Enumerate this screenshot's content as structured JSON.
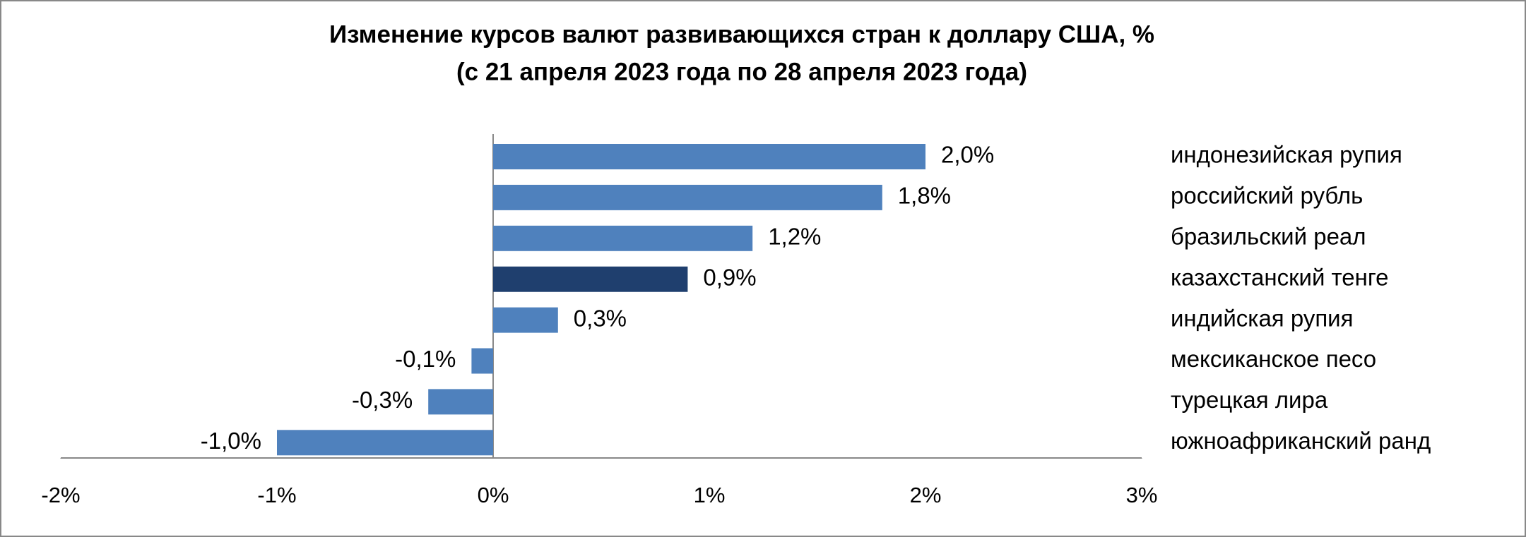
{
  "chart_data": {
    "type": "barh",
    "title": "Изменение курсов валют развивающихся стран к доллару США, %",
    "subtitle": "(с 21 апреля 2023 года по 28 апреля 2023 года)",
    "categories": [
      "индонезийская рупия",
      "российский рубль",
      "бразильский реал",
      "казахстанский тенге",
      "индийская рупия",
      "мексиканское песо",
      "турецкая лира",
      "южноафриканский ранд"
    ],
    "values": [
      2.0,
      1.8,
      1.2,
      0.9,
      0.3,
      -0.1,
      -0.3,
      -1.0
    ],
    "value_labels": [
      "2,0%",
      "1,8%",
      "1,2%",
      "0,9%",
      "0,3%",
      "-0,1%",
      "-0,3%",
      "-1,0%"
    ],
    "colors": [
      "#4f81bd",
      "#4f81bd",
      "#4f81bd",
      "#1f3f6e",
      "#4f81bd",
      "#4f81bd",
      "#4f81bd",
      "#4f81bd"
    ],
    "xlim": [
      -2,
      3
    ],
    "xticks": [
      {
        "value": -2,
        "label": "-2%"
      },
      {
        "value": -1,
        "label": "-1%"
      },
      {
        "value": 0,
        "label": "0%"
      },
      {
        "value": 1,
        "label": "1%"
      },
      {
        "value": 2,
        "label": "2%"
      },
      {
        "value": 3,
        "label": "3%"
      }
    ]
  }
}
